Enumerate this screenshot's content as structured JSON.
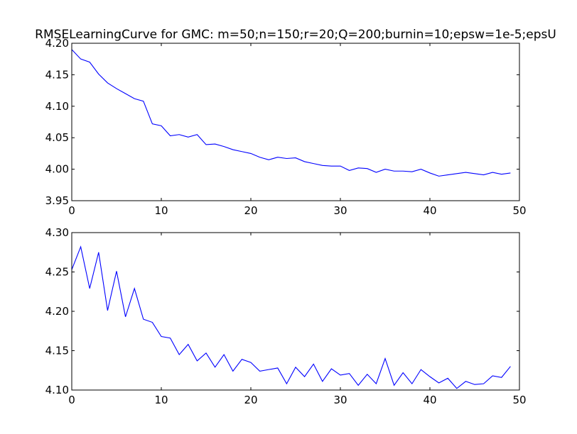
{
  "chart_data": [
    {
      "type": "line",
      "title": "RMSELearningCurve for GMC: m=50;n=150;r=20;Q=200;burnin=10;epsw=1e-5;epsU",
      "xlabel": "",
      "ylabel": "",
      "xlim": [
        0,
        50
      ],
      "ylim": [
        3.95,
        4.2
      ],
      "xticks": [
        0,
        10,
        20,
        30,
        40,
        50
      ],
      "yticks": [
        3.95,
        4.0,
        4.05,
        4.1,
        4.15,
        4.2
      ],
      "xtick_labels": [
        "0",
        "10",
        "20",
        "30",
        "40",
        "50"
      ],
      "ytick_labels": [
        "3.95",
        "4.00",
        "4.05",
        "4.10",
        "4.15",
        "4.20"
      ],
      "grid": false,
      "line_color": "#0000ff",
      "x": [
        0,
        1,
        2,
        3,
        4,
        5,
        6,
        7,
        8,
        9,
        10,
        11,
        12,
        13,
        14,
        15,
        16,
        17,
        18,
        19,
        20,
        21,
        22,
        23,
        24,
        25,
        26,
        27,
        28,
        29,
        30,
        31,
        32,
        33,
        34,
        35,
        36,
        37,
        38,
        39,
        40,
        41,
        42,
        43,
        44,
        45,
        46,
        47,
        48,
        49
      ],
      "y": [
        4.19,
        4.175,
        4.17,
        4.151,
        4.137,
        4.128,
        4.12,
        4.112,
        4.108,
        4.072,
        4.069,
        4.053,
        4.055,
        4.051,
        4.055,
        4.039,
        4.04,
        4.036,
        4.031,
        4.028,
        4.025,
        4.019,
        4.015,
        4.019,
        4.017,
        4.018,
        4.012,
        4.009,
        4.006,
        4.005,
        4.005,
        3.998,
        4.002,
        4.001,
        3.995,
        4.0,
        3.997,
        3.997,
        3.996,
        4.0,
        3.994,
        3.989,
        3.991,
        3.993,
        3.995,
        3.993,
        3.991,
        3.995,
        3.992,
        3.994
      ]
    },
    {
      "type": "line",
      "title": "",
      "xlabel": "",
      "ylabel": "",
      "xlim": [
        0,
        50
      ],
      "ylim": [
        4.1,
        4.3
      ],
      "xticks": [
        0,
        10,
        20,
        30,
        40,
        50
      ],
      "yticks": [
        4.1,
        4.15,
        4.2,
        4.25,
        4.3
      ],
      "xtick_labels": [
        "0",
        "10",
        "20",
        "30",
        "40",
        "50"
      ],
      "ytick_labels": [
        "4.10",
        "4.15",
        "4.20",
        "4.25",
        "4.30"
      ],
      "grid": false,
      "line_color": "#0000ff",
      "x": [
        0,
        1,
        2,
        3,
        4,
        5,
        6,
        7,
        8,
        9,
        10,
        11,
        12,
        13,
        14,
        15,
        16,
        17,
        18,
        19,
        20,
        21,
        22,
        23,
        24,
        25,
        26,
        27,
        28,
        29,
        30,
        31,
        32,
        33,
        34,
        35,
        36,
        37,
        38,
        39,
        40,
        41,
        42,
        43,
        44,
        45,
        46,
        47,
        48,
        49
      ],
      "y": [
        4.253,
        4.282,
        4.229,
        4.275,
        4.201,
        4.251,
        4.193,
        4.229,
        4.19,
        4.186,
        4.168,
        4.166,
        4.145,
        4.158,
        4.137,
        4.147,
        4.129,
        4.145,
        4.124,
        4.139,
        4.135,
        4.124,
        4.126,
        4.128,
        4.108,
        4.129,
        4.117,
        4.133,
        4.111,
        4.127,
        4.119,
        4.121,
        4.106,
        4.12,
        4.108,
        4.14,
        4.106,
        4.122,
        4.108,
        4.126,
        4.117,
        4.109,
        4.115,
        4.102,
        4.111,
        4.107,
        4.108,
        4.118,
        4.116,
        4.13
      ]
    }
  ]
}
